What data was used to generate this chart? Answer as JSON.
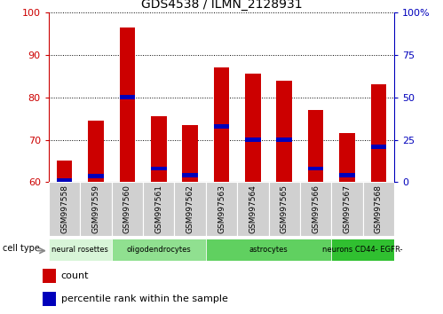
{
  "title": "GDS4538 / ILMN_2128931",
  "samples": [
    "GSM997558",
    "GSM997559",
    "GSM997560",
    "GSM997561",
    "GSM997562",
    "GSM997563",
    "GSM997564",
    "GSM997565",
    "GSM997566",
    "GSM997567",
    "GSM997568"
  ],
  "count_values": [
    65.0,
    74.5,
    96.5,
    75.5,
    73.5,
    87.0,
    85.5,
    84.0,
    77.0,
    71.5,
    83.0
  ],
  "percentile_values": [
    1.0,
    3.5,
    50.0,
    8.0,
    4.0,
    33.0,
    25.0,
    25.0,
    8.0,
    4.0,
    21.0
  ],
  "ylim_left": [
    60,
    100
  ],
  "ylim_right": [
    0,
    100
  ],
  "right_ticks": [
    0,
    25,
    50,
    75,
    100
  ],
  "right_tick_labels": [
    "0",
    "25",
    "50",
    "75",
    "100%"
  ],
  "left_ticks": [
    60,
    70,
    80,
    90,
    100
  ],
  "cell_types": [
    {
      "label": "neural rosettes",
      "start": 0,
      "end": 2,
      "color": "#d8f5d8"
    },
    {
      "label": "oligodendrocytes",
      "start": 2,
      "end": 5,
      "color": "#90e090"
    },
    {
      "label": "astrocytes",
      "start": 5,
      "end": 9,
      "color": "#60d060"
    },
    {
      "label": "neurons CD44- EGFR-",
      "start": 9,
      "end": 11,
      "color": "#30c030"
    }
  ],
  "bar_width": 0.5,
  "count_color": "#cc0000",
  "percentile_color": "#0000bb",
  "bar_bottom": 60,
  "xlabel_color": "#cc0000",
  "ylabel_right_color": "#0000bb",
  "grid_color": "#000000",
  "background_color": "#ffffff",
  "legend_count_label": "count",
  "legend_pct_label": "percentile rank within the sample",
  "sample_bg_color": "#d0d0d0",
  "cell_type_label": "cell type"
}
